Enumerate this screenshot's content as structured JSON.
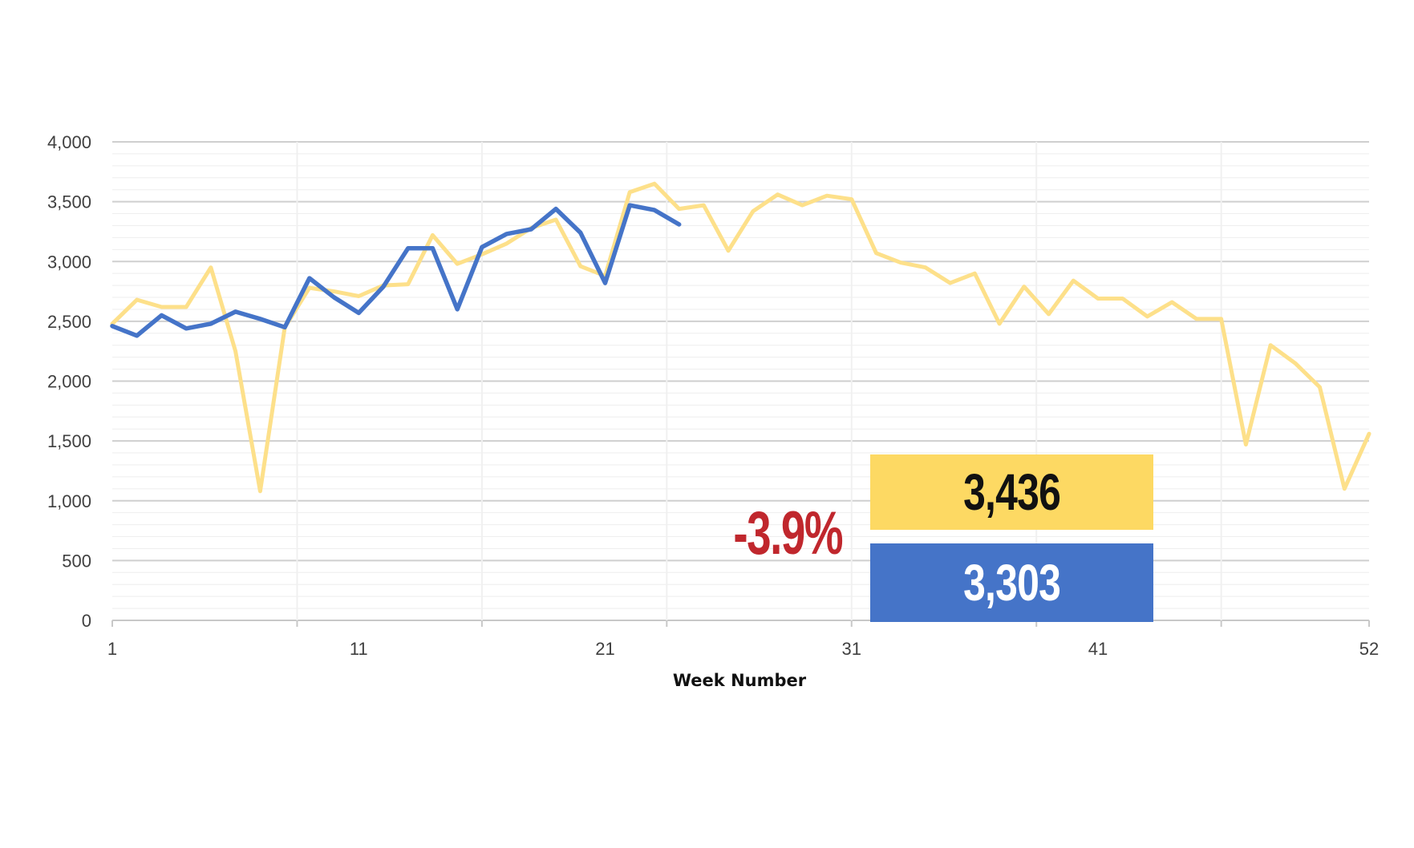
{
  "chart_data": {
    "type": "line",
    "title": "",
    "xlabel": "Week Number",
    "ylabel": "",
    "xlim": [
      1,
      52
    ],
    "ylim": [
      0,
      4000
    ],
    "x_ticks": [
      "1",
      "11",
      "21",
      "31",
      "41",
      "52"
    ],
    "y_ticks": [
      "0",
      "500",
      "1,000",
      "1,500",
      "2,000",
      "2,500",
      "3,000",
      "3,500",
      "4,000"
    ],
    "grid": true,
    "legend": "none",
    "series": [
      {
        "color": "#fde08a",
        "values": [
          2480,
          2680,
          2620,
          2620,
          2950,
          2250,
          1080,
          2450,
          2780,
          2750,
          2710,
          2800,
          2810,
          3220,
          2980,
          3060,
          3150,
          3280,
          3350,
          2960,
          2880,
          3580,
          3650,
          3440,
          3470,
          3090,
          3420,
          3560,
          3470,
          3550,
          3520,
          3070,
          2990,
          2950,
          2820,
          2900,
          2480,
          2790,
          2560,
          2840,
          2690,
          2690,
          2540,
          2660,
          2520,
          2520,
          1470,
          2300,
          2150,
          1950,
          1100,
          1560
        ]
      },
      {
        "color": "#4574c8",
        "values": [
          2460,
          2380,
          2550,
          2440,
          2480,
          2580,
          2520,
          2450,
          2860,
          2700,
          2570,
          2790,
          3110,
          3110,
          2600,
          3120,
          3230,
          3270,
          3440,
          3240,
          2820,
          3470,
          3430,
          3310
        ]
      }
    ]
  },
  "callouts": {
    "previous_value": "3,436",
    "current_value": "3,303",
    "change_pct": "-3.9%"
  }
}
